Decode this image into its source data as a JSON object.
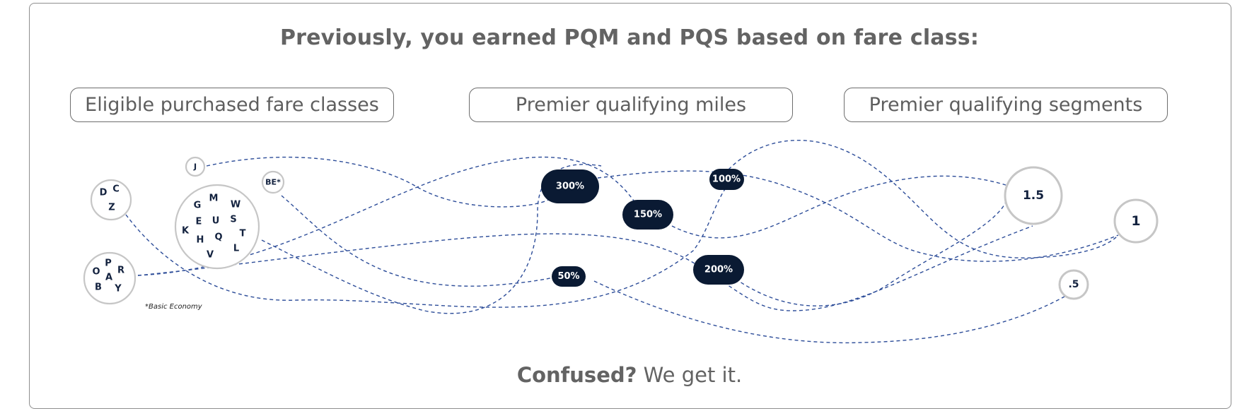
{
  "headline": "Previously, you earned PQM and PQS based on fare class:",
  "headers": {
    "fare_classes": "Eligible purchased fare classes",
    "pqm": "Premier qualifying miles",
    "pqs": "Premier qualifying segments"
  },
  "fare_groups": {
    "dcz": [
      "D",
      "C",
      "Z"
    ],
    "j": [
      "J"
    ],
    "be": [
      "BE*"
    ],
    "mixed": [
      "G",
      "M",
      "W",
      "E",
      "U",
      "S",
      "K",
      "T",
      "H",
      "Q",
      "L",
      "V"
    ],
    "opray": [
      "O",
      "P",
      "R",
      "A",
      "B",
      "Y"
    ]
  },
  "pqm_multipliers": {
    "p300": "300%",
    "p150": "150%",
    "p100": "100%",
    "p200": "200%",
    "p50": "50%"
  },
  "pqs_values": {
    "s15": "1.5",
    "s1": "1",
    "s05": ".5"
  },
  "note": "*Basic Economy",
  "footer": {
    "bold": "Confused?",
    "rest": " We get it."
  },
  "colors": {
    "link": "#2d4d99",
    "pill": "#0a1a33",
    "circle_border": "#c6c6c6",
    "text_gray": "#636363"
  }
}
